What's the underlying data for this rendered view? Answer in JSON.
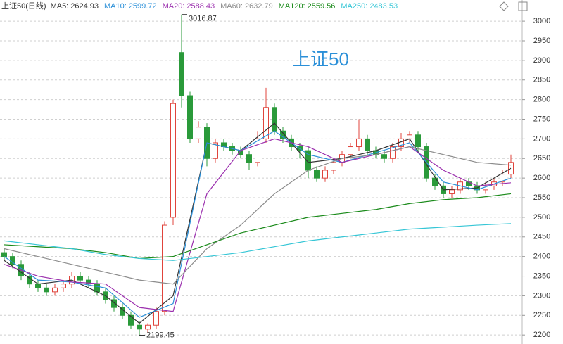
{
  "chart_data": {
    "type": "candlestick",
    "title": "上证50",
    "header": "上证50(日线)",
    "up_color": "#e0443c",
    "down_color": "#2a9a3a",
    "ylim": [
      2177,
      3054
    ],
    "yticks": [
      2200,
      2250,
      2300,
      2350,
      2400,
      2450,
      2500,
      2550,
      2600,
      2650,
      2700,
      2750,
      2800,
      2850,
      2900,
      2950,
      3000
    ],
    "grid": true,
    "open": [
      2410,
      2400,
      2380,
      2350,
      2330,
      2320,
      2310,
      2320,
      2330,
      2350,
      2340,
      2330,
      2310,
      2290,
      2270,
      2250,
      2225,
      2215,
      2225,
      2260,
      2500,
      2920,
      2810,
      2700,
      2730,
      2650,
      2690,
      2680,
      2670,
      2660,
      2640,
      2700,
      2780,
      2720,
      2700,
      2680,
      2670,
      2620,
      2600,
      2620,
      2640,
      2660,
      2680,
      2700,
      2670,
      2660,
      2650,
      2680,
      2700,
      2710,
      2680,
      2600,
      2580,
      2560,
      2570,
      2590,
      2580,
      2570,
      2580,
      2590,
      2610
    ],
    "high": [
      2420,
      2410,
      2390,
      2360,
      2340,
      2330,
      2330,
      2340,
      2360,
      2360,
      2350,
      2340,
      2320,
      2300,
      2280,
      2260,
      2235,
      2230,
      2270,
      2490,
      2800,
      3016.87,
      2820,
      2745,
      2740,
      2700,
      2700,
      2690,
      2680,
      2670,
      2720,
      2830,
      2790,
      2730,
      2710,
      2690,
      2680,
      2630,
      2630,
      2650,
      2670,
      2690,
      2750,
      2710,
      2680,
      2670,
      2690,
      2715,
      2720,
      2720,
      2690,
      2610,
      2590,
      2580,
      2600,
      2600,
      2590,
      2590,
      2600,
      2620,
      2660
    ],
    "low": [
      2390,
      2370,
      2340,
      2320,
      2310,
      2300,
      2300,
      2310,
      2320,
      2330,
      2320,
      2300,
      2280,
      2260,
      2240,
      2215,
      2199.45,
      2205,
      2215,
      2250,
      2480,
      2780,
      2690,
      2690,
      2630,
      2640,
      2670,
      2660,
      2650,
      2620,
      2630,
      2690,
      2710,
      2690,
      2670,
      2650,
      2600,
      2590,
      2590,
      2610,
      2630,
      2650,
      2670,
      2660,
      2650,
      2640,
      2640,
      2670,
      2690,
      2670,
      2590,
      2570,
      2550,
      2550,
      2560,
      2570,
      2560,
      2560,
      2570,
      2580,
      2600
    ],
    "close": [
      2400,
      2380,
      2350,
      2330,
      2320,
      2310,
      2320,
      2330,
      2350,
      2340,
      2330,
      2310,
      2290,
      2270,
      2250,
      2225,
      2215,
      2225,
      2260,
      2480,
      2790,
      2810,
      2700,
      2730,
      2650,
      2690,
      2680,
      2670,
      2660,
      2640,
      2700,
      2780,
      2720,
      2700,
      2680,
      2670,
      2620,
      2600,
      2620,
      2640,
      2660,
      2680,
      2700,
      2670,
      2660,
      2650,
      2680,
      2700,
      2710,
      2680,
      2600,
      2580,
      2560,
      2570,
      2590,
      2580,
      2570,
      2580,
      2590,
      2610,
      2640
    ],
    "max_label": 3016.87,
    "min_label": 2199.45,
    "lines": {
      "x": [
        0,
        4,
        8,
        12,
        16,
        20,
        24,
        28,
        32,
        36,
        40,
        44,
        48,
        52,
        56,
        60
      ],
      "series": [
        {
          "name": "MA5:",
          "legend_value": 2624.93,
          "color": "#333333",
          "values": [
            2390,
            2330,
            2340,
            2300,
            2230,
            2300,
            2690,
            2670,
            2740,
            2640,
            2650,
            2670,
            2700,
            2570,
            2575,
            2625
          ]
        },
        {
          "name": "MA10:",
          "legend_value": 2599.72,
          "color": "#2a8fd8",
          "values": [
            2400,
            2340,
            2335,
            2320,
            2245,
            2280,
            2690,
            2670,
            2720,
            2660,
            2640,
            2665,
            2690,
            2590,
            2570,
            2600
          ]
        },
        {
          "name": "MA20:",
          "legend_value": 2588.43,
          "color": "#9b2fae",
          "values": [
            2380,
            2350,
            2335,
            2330,
            2270,
            2260,
            2560,
            2670,
            2700,
            2680,
            2640,
            2660,
            2680,
            2620,
            2580,
            2588
          ]
        },
        {
          "name": "MA60:",
          "legend_value": 2632.79,
          "color": "#8c8c8c",
          "values": [
            2420,
            2400,
            2380,
            2360,
            2340,
            2330,
            2420,
            2480,
            2560,
            2620,
            2650,
            2660,
            2680,
            2660,
            2640,
            2633
          ]
        },
        {
          "name": "MA120:",
          "legend_value": 2559.56,
          "color": "#1a8a1a",
          "values": [
            2430,
            2425,
            2420,
            2410,
            2395,
            2400,
            2430,
            2460,
            2480,
            2500,
            2510,
            2520,
            2535,
            2545,
            2550,
            2560
          ]
        },
        {
          "name": "MA250:",
          "legend_value": 2483.53,
          "color": "#36c6d6",
          "values": [
            2440,
            2430,
            2420,
            2405,
            2395,
            2390,
            2400,
            2410,
            2425,
            2440,
            2450,
            2460,
            2470,
            2475,
            2480,
            2484
          ]
        }
      ]
    }
  }
}
